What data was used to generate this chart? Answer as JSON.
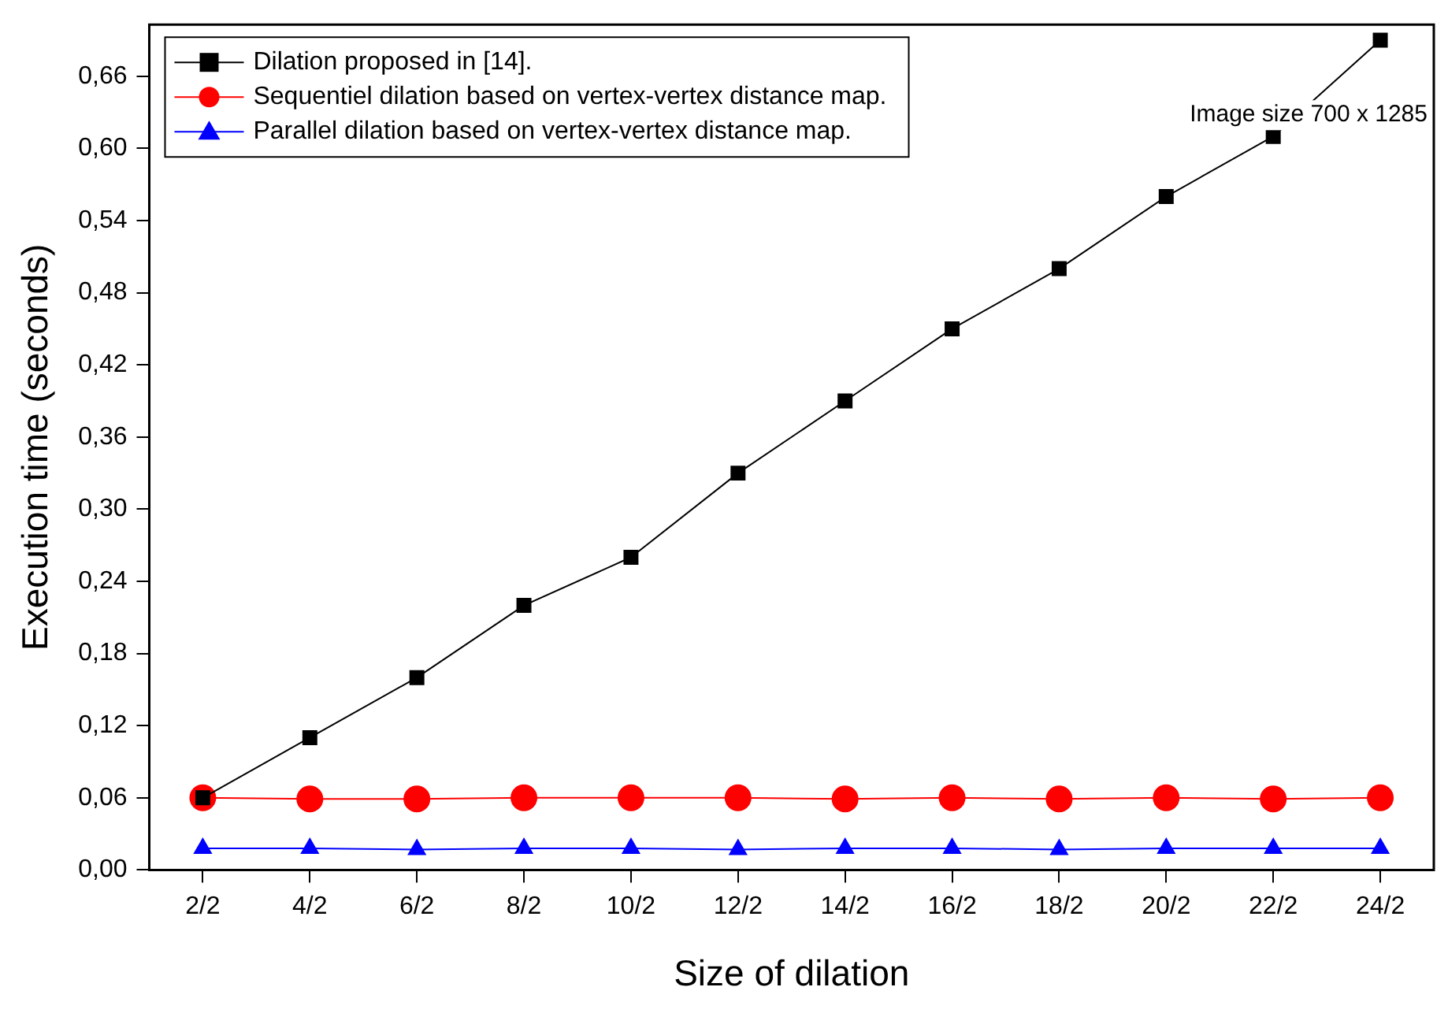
{
  "chart_data": {
    "type": "line",
    "xlabel": "Size of dilation",
    "ylabel": "Execution time (seconds)",
    "categories": [
      "2/2",
      "4/2",
      "6/2",
      "8/2",
      "10/2",
      "12/2",
      "14/2",
      "16/2",
      "18/2",
      "20/2",
      "22/2",
      "24/2"
    ],
    "ylim": [
      0,
      0.703
    ],
    "yticks": [
      {
        "value": 0,
        "label": "0,00"
      },
      {
        "value": 0.06,
        "label": "0,06"
      },
      {
        "value": 0.12,
        "label": "0,12"
      },
      {
        "value": 0.18,
        "label": "0,18"
      },
      {
        "value": 0.24,
        "label": "0,24"
      },
      {
        "value": 0.3,
        "label": "0,30"
      },
      {
        "value": 0.36,
        "label": "0,36"
      },
      {
        "value": 0.42,
        "label": "0,42"
      },
      {
        "value": 0.48,
        "label": "0,48"
      },
      {
        "value": 0.54,
        "label": "0,54"
      },
      {
        "value": 0.6,
        "label": "0,60"
      },
      {
        "value": 0.66,
        "label": "0,66"
      }
    ],
    "series": [
      {
        "name": "Dilation proposed in [14].",
        "color": "#000000",
        "marker": "square",
        "values": [
          0.06,
          0.11,
          0.16,
          0.22,
          0.26,
          0.33,
          0.39,
          0.45,
          0.5,
          0.56,
          0.61,
          0.69
        ]
      },
      {
        "name": "Sequentiel dilation based on vertex-vertex distance map.",
        "color": "#ff0000",
        "marker": "circle",
        "values": [
          0.06,
          0.059,
          0.059,
          0.06,
          0.06,
          0.06,
          0.059,
          0.06,
          0.059,
          0.06,
          0.059,
          0.06
        ]
      },
      {
        "name": "Parallel dilation based on vertex-vertex distance map.",
        "color": "#0000ff",
        "marker": "triangle",
        "values": [
          0.018,
          0.018,
          0.017,
          0.018,
          0.018,
          0.017,
          0.018,
          0.018,
          0.017,
          0.018,
          0.018,
          0.018
        ]
      }
    ],
    "annotations": [
      "Image size 700 x 1285"
    ],
    "legend": "top left",
    "grid": false,
    "line_style": "solid"
  }
}
